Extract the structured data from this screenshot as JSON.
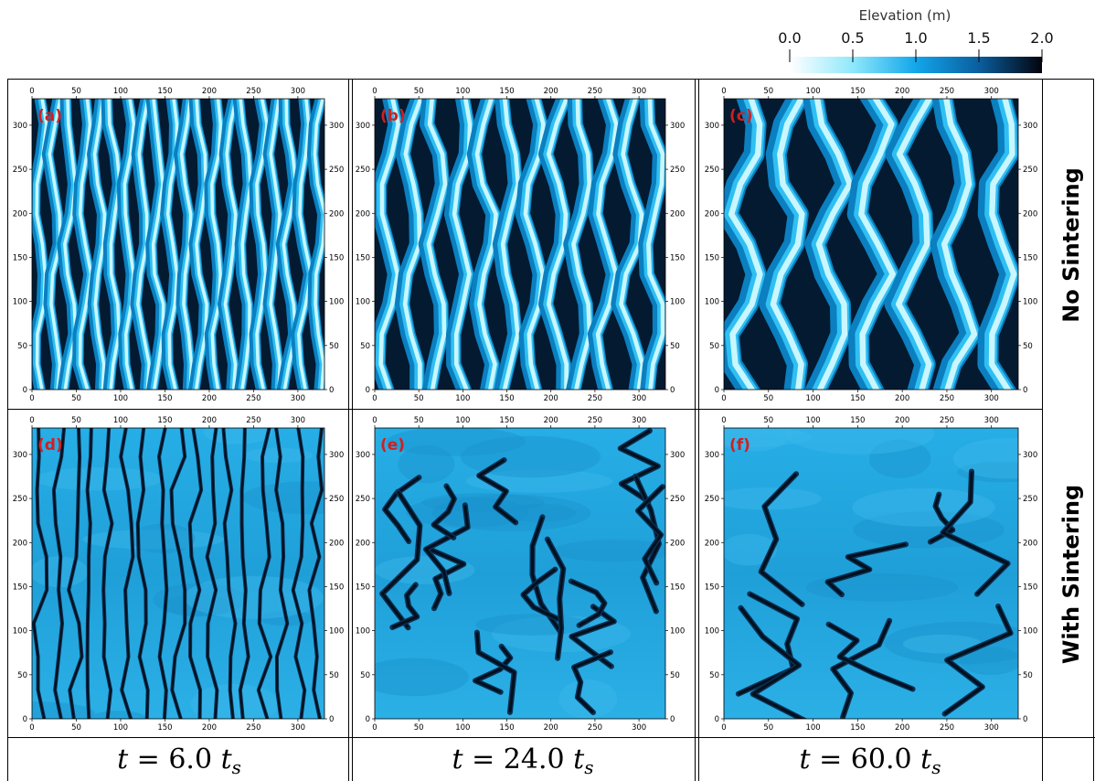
{
  "colorbar": {
    "title": "Elevation (m)",
    "ticks": [
      "0.0",
      "0.5",
      "1.0",
      "1.5",
      "2.0"
    ],
    "min": 0.0,
    "max": 2.0
  },
  "axes": {
    "ticks": [
      "0",
      "50",
      "100",
      "150",
      "200",
      "250",
      "300"
    ]
  },
  "rows": [
    {
      "label": "No Sintering"
    },
    {
      "label": "With Sintering"
    }
  ],
  "columns": [
    {
      "time_prefix": "t = ",
      "time_value": "6.0",
      "time_unit": "t",
      "time_sub": "s"
    },
    {
      "time_prefix": "t = ",
      "time_value": "24.0",
      "time_unit": "t",
      "time_sub": "s"
    },
    {
      "time_prefix": "t = ",
      "time_value": "60.0",
      "time_unit": "t",
      "time_sub": "s"
    }
  ],
  "panels": [
    {
      "label": "(a)",
      "sintering": false,
      "time": "6.0",
      "dune_count": 20
    },
    {
      "label": "(b)",
      "sintering": false,
      "time": "24.0",
      "dune_count": 12
    },
    {
      "label": "(c)",
      "sintering": false,
      "time": "60.0",
      "dune_count": 7
    },
    {
      "label": "(d)",
      "sintering": true,
      "time": "6.0",
      "dune_count": 17
    },
    {
      "label": "(e)",
      "sintering": true,
      "time": "24.0",
      "dune_count": 6
    },
    {
      "label": "(f)",
      "sintering": true,
      "time": "60.0",
      "dune_count": 3
    }
  ],
  "colors": {
    "deep": "#000000",
    "high": "#041833",
    "mid": "#0a8fd6",
    "low": "#aeeeff",
    "flat": "#1ea6e0"
  }
}
